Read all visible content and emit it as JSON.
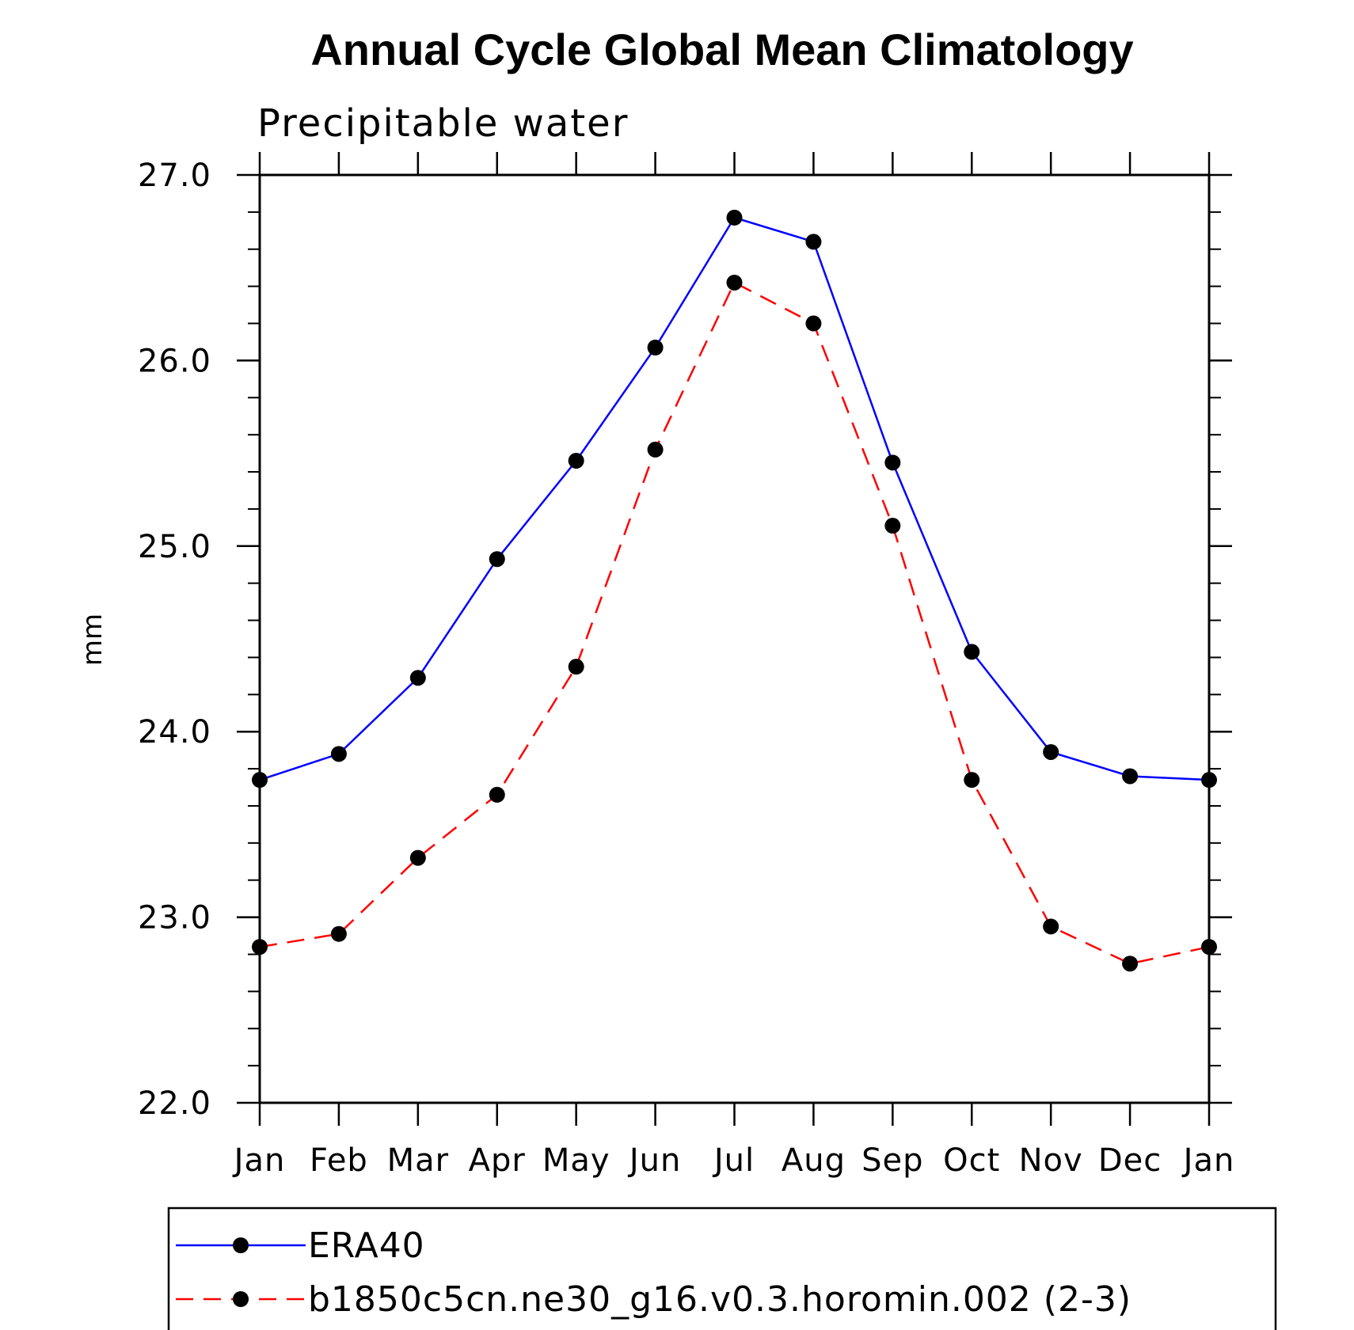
{
  "chart_data": {
    "type": "line",
    "title": "Annual Cycle Global Mean Climatology",
    "subtitle": "Precipitable water",
    "xlabel": "",
    "ylabel": "mm",
    "categories": [
      "Jan",
      "Feb",
      "Mar",
      "Apr",
      "May",
      "Jun",
      "Jul",
      "Aug",
      "Sep",
      "Oct",
      "Nov",
      "Dec",
      "Jan"
    ],
    "ylim": [
      22.0,
      27.0
    ],
    "yticks": [
      "22.0",
      "23.0",
      "24.0",
      "25.0",
      "26.0",
      "27.0"
    ],
    "grid": false,
    "legend_position": "bottom",
    "series": [
      {
        "name": "ERA40",
        "color": "#0000ff",
        "line_style": "solid",
        "marker": "filled-circle",
        "values": [
          23.74,
          23.88,
          24.29,
          24.93,
          25.46,
          26.07,
          26.77,
          26.64,
          25.45,
          24.43,
          23.89,
          23.76,
          23.74
        ]
      },
      {
        "name": "b1850c5cn.ne30_g16.v0.3.horomin.002 (2-3)",
        "color": "#ff0000",
        "line_style": "dashed",
        "marker": "filled-circle",
        "values": [
          22.84,
          22.91,
          23.32,
          23.66,
          24.35,
          25.52,
          26.42,
          26.2,
          25.11,
          23.74,
          22.95,
          22.75,
          22.84
        ]
      }
    ]
  }
}
